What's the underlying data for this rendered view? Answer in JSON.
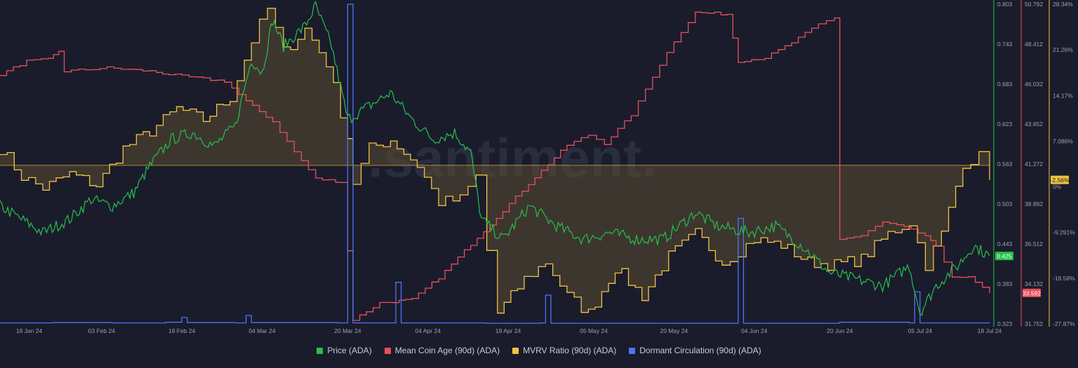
{
  "watermark": ".santiment.",
  "chart_data": {
    "type": "line",
    "x_ticks": [
      "18 Jan 24",
      "03 Feb 24",
      "18 Feb 24",
      "04 Mar 24",
      "20 Mar 24",
      "04 Apr 24",
      "19 Apr 24",
      "05 May 24",
      "20 May 24",
      "04 Jun 24",
      "20 Jun 24",
      "05 Jul 24",
      "18 Jul 24"
    ],
    "x_range": [
      "2024-01-15",
      "2024-07-18"
    ],
    "axes": [
      {
        "id": "price",
        "color": "#26c04a",
        "ticks": [
          "0.803",
          "0.743",
          "0.683",
          "0.623",
          "0.563",
          "0.503",
          "0.443",
          "0.383",
          "0.323"
        ],
        "range": [
          0.323,
          0.803
        ],
        "current_label": "0.425"
      },
      {
        "id": "age",
        "color": "#e8505b",
        "ticks": [
          "50.792",
          "48.412",
          "46.032",
          "43.652",
          "41.272",
          "38.892",
          "36.512",
          "34.132",
          "31.752"
        ],
        "range": [
          31.752,
          50.792
        ],
        "current_label": "33.592"
      },
      {
        "id": "mvrv",
        "color": "#f3c342",
        "ticks": [
          "28.34%",
          "21.26%",
          "14.17%",
          "7.086%",
          "0%",
          "-9.291%",
          "-18.58%",
          "-27.87%"
        ],
        "range": [
          -27.87,
          28.34
        ],
        "current_label": "-2.56%"
      }
    ],
    "series": [
      {
        "name": "Price (ADA)",
        "color": "#26c04a",
        "axis": "price",
        "points": [
          [
            "2024-01-15",
            0.5
          ],
          [
            "2024-01-19",
            0.48
          ],
          [
            "2024-01-23",
            0.46
          ],
          [
            "2024-01-28",
            0.48
          ],
          [
            "2024-02-01",
            0.51
          ],
          [
            "2024-02-05",
            0.5
          ],
          [
            "2024-02-09",
            0.52
          ],
          [
            "2024-02-12",
            0.56
          ],
          [
            "2024-02-16",
            0.6
          ],
          [
            "2024-02-20",
            0.61
          ],
          [
            "2024-02-24",
            0.59
          ],
          [
            "2024-02-28",
            0.62
          ],
          [
            "2024-03-02",
            0.72
          ],
          [
            "2024-03-04",
            0.7
          ],
          [
            "2024-03-06",
            0.78
          ],
          [
            "2024-03-08",
            0.74
          ],
          [
            "2024-03-12",
            0.77
          ],
          [
            "2024-03-14",
            0.8
          ],
          [
            "2024-03-17",
            0.74
          ],
          [
            "2024-03-20",
            0.63
          ],
          [
            "2024-03-24",
            0.65
          ],
          [
            "2024-03-28",
            0.67
          ],
          [
            "2024-04-01",
            0.63
          ],
          [
            "2024-04-05",
            0.6
          ],
          [
            "2024-04-09",
            0.61
          ],
          [
            "2024-04-12",
            0.58
          ],
          [
            "2024-04-14",
            0.48
          ],
          [
            "2024-04-18",
            0.45
          ],
          [
            "2024-04-23",
            0.5
          ],
          [
            "2024-04-28",
            0.47
          ],
          [
            "2024-05-03",
            0.45
          ],
          [
            "2024-05-08",
            0.46
          ],
          [
            "2024-05-13",
            0.45
          ],
          [
            "2024-05-18",
            0.45
          ],
          [
            "2024-05-24",
            0.49
          ],
          [
            "2024-05-28",
            0.47
          ],
          [
            "2024-06-03",
            0.46
          ],
          [
            "2024-06-08",
            0.47
          ],
          [
            "2024-06-13",
            0.44
          ],
          [
            "2024-06-18",
            0.4
          ],
          [
            "2024-06-23",
            0.39
          ],
          [
            "2024-06-28",
            0.38
          ],
          [
            "2024-07-03",
            0.41
          ],
          [
            "2024-07-05",
            0.34
          ],
          [
            "2024-07-08",
            0.38
          ],
          [
            "2024-07-12",
            0.41
          ],
          [
            "2024-07-15",
            0.44
          ],
          [
            "2024-07-18",
            0.425
          ]
        ]
      },
      {
        "name": "Mean Coin Age (90d) (ADA)",
        "color": "#e8505b",
        "axis": "age",
        "points": [
          [
            "2024-01-15",
            46.6
          ],
          [
            "2024-01-20",
            47.4
          ],
          [
            "2024-01-24",
            47.5
          ],
          [
            "2024-01-26",
            48.0
          ],
          [
            "2024-01-27",
            46.8
          ],
          [
            "2024-02-04",
            47.0
          ],
          [
            "2024-02-12",
            46.8
          ],
          [
            "2024-02-18",
            46.5
          ],
          [
            "2024-02-26",
            46.2
          ],
          [
            "2024-03-01",
            45.0
          ],
          [
            "2024-03-06",
            43.8
          ],
          [
            "2024-03-10",
            42.0
          ],
          [
            "2024-03-14",
            40.4
          ],
          [
            "2024-03-19",
            40.2
          ],
          [
            "2024-03-21",
            32.0
          ],
          [
            "2024-03-26",
            33.0
          ],
          [
            "2024-04-01",
            33.2
          ],
          [
            "2024-04-06",
            34.5
          ],
          [
            "2024-04-12",
            36.5
          ],
          [
            "2024-04-18",
            38.5
          ],
          [
            "2024-04-24",
            40.5
          ],
          [
            "2024-04-30",
            42.4
          ],
          [
            "2024-05-04",
            43.0
          ],
          [
            "2024-05-07",
            42.5
          ],
          [
            "2024-05-12",
            44.2
          ],
          [
            "2024-05-16",
            46.5
          ],
          [
            "2024-05-20",
            48.6
          ],
          [
            "2024-05-24",
            50.3
          ],
          [
            "2024-05-30",
            50.2
          ],
          [
            "2024-06-01",
            47.4
          ],
          [
            "2024-06-06",
            47.6
          ],
          [
            "2024-06-11",
            48.5
          ],
          [
            "2024-06-16",
            49.6
          ],
          [
            "2024-06-19",
            50.0
          ],
          [
            "2024-06-20",
            36.8
          ],
          [
            "2024-06-24",
            37.0
          ],
          [
            "2024-06-28",
            37.8
          ],
          [
            "2024-07-02",
            37.5
          ],
          [
            "2024-07-06",
            37.0
          ],
          [
            "2024-07-08",
            36.3
          ],
          [
            "2024-07-11",
            34.6
          ],
          [
            "2024-07-14",
            34.5
          ],
          [
            "2024-07-18",
            33.592
          ]
        ]
      },
      {
        "name": "MVRV Ratio (90d) (ADA)",
        "color": "#f3c342",
        "axis": "mvrv",
        "points": [
          [
            "2024-01-15",
            3.0
          ],
          [
            "2024-01-19",
            -2.0
          ],
          [
            "2024-01-23",
            -4.0
          ],
          [
            "2024-01-28",
            -1.5
          ],
          [
            "2024-02-02",
            -3.5
          ],
          [
            "2024-02-07",
            3.0
          ],
          [
            "2024-02-12",
            6.0
          ],
          [
            "2024-02-17",
            10.0
          ],
          [
            "2024-02-22",
            8.0
          ],
          [
            "2024-02-27",
            12.0
          ],
          [
            "2024-03-02",
            22.0
          ],
          [
            "2024-03-05",
            27.5
          ],
          [
            "2024-03-08",
            20.0
          ],
          [
            "2024-03-12",
            24.0
          ],
          [
            "2024-03-16",
            18.0
          ],
          [
            "2024-03-20",
            5.0
          ],
          [
            "2024-03-21",
            -3.0
          ],
          [
            "2024-03-24",
            3.0
          ],
          [
            "2024-03-28",
            4.5
          ],
          [
            "2024-04-02",
            0.0
          ],
          [
            "2024-04-06",
            -6.5
          ],
          [
            "2024-04-10",
            -6.0
          ],
          [
            "2024-04-13",
            -2.0
          ],
          [
            "2024-04-15",
            -15.0
          ],
          [
            "2024-04-17",
            -26.0
          ],
          [
            "2024-04-22",
            -20.0
          ],
          [
            "2024-04-26",
            -17.0
          ],
          [
            "2024-04-30",
            -23.0
          ],
          [
            "2024-05-04",
            -26.0
          ],
          [
            "2024-05-09",
            -18.0
          ],
          [
            "2024-05-14",
            -23.0
          ],
          [
            "2024-05-19",
            -16.0
          ],
          [
            "2024-05-24",
            -12.0
          ],
          [
            "2024-05-29",
            -17.0
          ],
          [
            "2024-06-04",
            -13.0
          ],
          [
            "2024-06-09",
            -14.0
          ],
          [
            "2024-06-14",
            -17.0
          ],
          [
            "2024-06-19",
            -17.5
          ],
          [
            "2024-06-24",
            -16.5
          ],
          [
            "2024-06-29",
            -12.0
          ],
          [
            "2024-07-03",
            -10.0
          ],
          [
            "2024-07-06",
            -17.5
          ],
          [
            "2024-07-09",
            -12.0
          ],
          [
            "2024-07-13",
            0.5
          ],
          [
            "2024-07-16",
            1.5
          ],
          [
            "2024-07-18",
            -2.56
          ]
        ]
      },
      {
        "name": "Dormant Circulation (90d) (ADA)",
        "color": "#4d74f5",
        "axis": "dormant",
        "points": [
          [
            "2024-01-15",
            0.3
          ],
          [
            "2024-01-25",
            0.4
          ],
          [
            "2024-02-05",
            0.3
          ],
          [
            "2024-02-15",
            0.5
          ],
          [
            "2024-02-18",
            2.0
          ],
          [
            "2024-02-19",
            0.4
          ],
          [
            "2024-02-28",
            0.3
          ],
          [
            "2024-03-01",
            2.6
          ],
          [
            "2024-03-02",
            0.4
          ],
          [
            "2024-03-18",
            0.3
          ],
          [
            "2024-03-20",
            100.0
          ],
          [
            "2024-03-21",
            0.3
          ],
          [
            "2024-03-28",
            0.3
          ],
          [
            "2024-03-29",
            13.0
          ],
          [
            "2024-03-30",
            0.3
          ],
          [
            "2024-04-15",
            0.2
          ],
          [
            "2024-04-25",
            0.3
          ],
          [
            "2024-04-26",
            9.0
          ],
          [
            "2024-04-27",
            0.2
          ],
          [
            "2024-05-15",
            0.2
          ],
          [
            "2024-05-31",
            0.2
          ],
          [
            "2024-06-01",
            33.0
          ],
          [
            "2024-06-02",
            0.2
          ],
          [
            "2024-06-20",
            0.5
          ],
          [
            "2024-07-03",
            0.3
          ],
          [
            "2024-07-04",
            10.0
          ],
          [
            "2024-07-05",
            0.3
          ],
          [
            "2024-07-18",
            0.4
          ]
        ]
      }
    ],
    "legend": [
      "Price (ADA)",
      "Mean Coin Age (90d) (ADA)",
      "MVRV Ratio (90d) (ADA)",
      "Dormant Circulation (90d) (ADA)"
    ],
    "legend_position": "bottom-center",
    "grid": false
  }
}
